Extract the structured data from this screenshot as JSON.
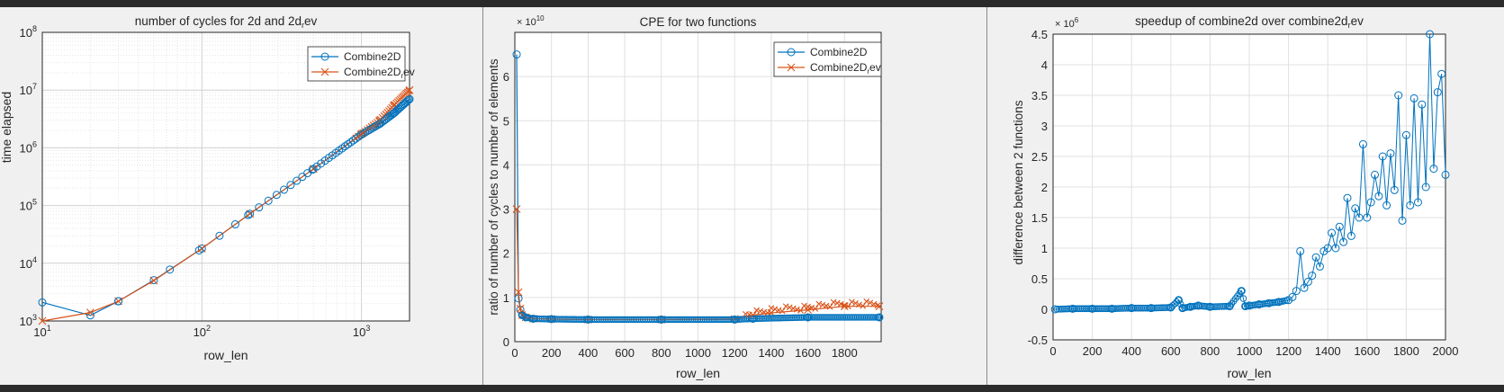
{
  "chart_data": [
    {
      "type": "line",
      "title": "number of cycles for 2d and 2d",
      "title_sub": "r",
      "title_tail": "ev",
      "xlabel": "row_len",
      "ylabel": "time elapsed",
      "xscale": "log",
      "yscale": "log",
      "xlim": [
        10,
        2000
      ],
      "ylim": [
        1000,
        100000000
      ],
      "grid": true,
      "legend_position": "top-right",
      "x_tick_labels": [
        {
          "base": "10",
          "exp": "1"
        },
        {
          "base": "10",
          "exp": "2"
        },
        {
          "base": "10",
          "exp": "3"
        }
      ],
      "y_tick_labels": [
        {
          "base": "10",
          "exp": "3"
        },
        {
          "base": "10",
          "exp": "4"
        },
        {
          "base": "10",
          "exp": "5"
        },
        {
          "base": "10",
          "exp": "6"
        },
        {
          "base": "10",
          "exp": "7"
        },
        {
          "base": "10",
          "exp": "8"
        }
      ],
      "series": [
        {
          "name": "Combine2D",
          "name_sub": "",
          "name_tail": "",
          "marker": "circle",
          "color": "#0072bd",
          "x": [
            10,
            20,
            30,
            50,
            100,
            200,
            500,
            1000,
            1300,
            1600,
            2000
          ],
          "y": [
            2100,
            1250,
            2200,
            5100,
            18000,
            72000,
            430000,
            1700000,
            2600000,
            4000000,
            7000000
          ]
        },
        {
          "name": "Combine2D",
          "name_sub": "r",
          "name_tail": "ev",
          "marker": "x",
          "color": "#d95319",
          "x": [
            10,
            20,
            30,
            50,
            100,
            200,
            500,
            1000,
            1300,
            1600,
            2000
          ],
          "y": [
            1000,
            1400,
            2200,
            5000,
            18000,
            72000,
            430000,
            1750000,
            3000000,
            5500000,
            10000000
          ]
        }
      ]
    },
    {
      "type": "line",
      "title": "CPE for two functions",
      "xlabel": "row_len",
      "ylabel": "ratio of number of cycles to number of elements",
      "xlim": [
        0,
        2000
      ],
      "ylim": [
        0,
        7
      ],
      "y_multiplier": "× 10",
      "y_multiplier_exp": "10",
      "grid": true,
      "legend_position": "top-right",
      "x_ticks": [
        0,
        200,
        400,
        600,
        800,
        1000,
        1200,
        1400,
        1600,
        1800
      ],
      "y_ticks": [
        0,
        1,
        2,
        3,
        4,
        5,
        6
      ],
      "series": [
        {
          "name": "Combine2D",
          "name_sub": "",
          "name_tail": "",
          "marker": "circle",
          "color": "#0072bd",
          "x": [
            10,
            20,
            30,
            40,
            60,
            100,
            200,
            400,
            800,
            1200,
            1300,
            1600,
            1990
          ],
          "y": [
            6.5,
            0.98,
            0.72,
            0.6,
            0.55,
            0.52,
            0.51,
            0.5,
            0.5,
            0.5,
            0.52,
            0.55,
            0.55
          ]
        },
        {
          "name": "Combine2D",
          "name_sub": "r",
          "name_tail": "ev",
          "marker": "x",
          "color": "#d95319",
          "x": [
            10,
            20,
            30,
            40,
            60,
            100,
            200,
            400,
            800,
            1200,
            1300,
            1400,
            1600,
            1800,
            1990
          ],
          "y": [
            3.0,
            1.12,
            0.75,
            0.6,
            0.55,
            0.52,
            0.51,
            0.5,
            0.5,
            0.51,
            0.6,
            0.65,
            0.72,
            0.8,
            0.8
          ]
        }
      ]
    },
    {
      "type": "line",
      "title": "speedup of combine2d over combine2d",
      "title_sub": "r",
      "title_tail": "ev",
      "xlabel": "row_len",
      "ylabel": "difference between 2 functions",
      "xlim": [
        0,
        2000
      ],
      "ylim": [
        -0.5,
        4.5
      ],
      "y_multiplier": "× 10",
      "y_multiplier_exp": "6",
      "grid": true,
      "x_ticks": [
        0,
        200,
        400,
        600,
        800,
        1000,
        1200,
        1400,
        1600,
        1800,
        2000
      ],
      "y_ticks": [
        -0.5,
        0,
        0.5,
        1,
        1.5,
        2,
        2.5,
        3,
        3.5,
        4,
        4.5
      ],
      "y_tick_labels": [
        "-0.5",
        "0",
        "0.5",
        "1",
        "1.5",
        "2",
        "2.5",
        "3",
        "3.5",
        "4",
        "4.5"
      ],
      "series": [
        {
          "name": "",
          "marker": "circle",
          "color": "#0072bd",
          "x": [
            10,
            100,
            200,
            300,
            400,
            500,
            600,
            640,
            660,
            700,
            740,
            800,
            900,
            960,
            980,
            1000,
            1050,
            1100,
            1150,
            1200,
            1220,
            1240,
            1260,
            1280,
            1300,
            1320,
            1340,
            1360,
            1380,
            1400,
            1420,
            1440,
            1460,
            1480,
            1500,
            1520,
            1540,
            1560,
            1580,
            1600,
            1620,
            1640,
            1660,
            1680,
            1700,
            1720,
            1740,
            1760,
            1780,
            1800,
            1820,
            1840,
            1860,
            1880,
            1900,
            1920,
            1940,
            1960,
            1980,
            2000
          ],
          "y": [
            0,
            0.01,
            0.01,
            0.01,
            0.02,
            0.02,
            0.03,
            0.15,
            0.02,
            0.04,
            0.06,
            0.04,
            0.05,
            0.3,
            0.05,
            0.06,
            0.08,
            0.1,
            0.12,
            0.15,
            0.2,
            0.3,
            0.95,
            0.35,
            0.45,
            0.55,
            0.85,
            0.7,
            0.95,
            1.0,
            1.25,
            1.0,
            1.35,
            1.1,
            1.82,
            1.2,
            1.65,
            1.5,
            2.7,
            1.5,
            1.75,
            2.2,
            1.85,
            2.5,
            1.7,
            2.55,
            1.95,
            3.5,
            1.45,
            2.85,
            1.7,
            3.45,
            1.75,
            3.35,
            2.0,
            4.5,
            2.3,
            3.55,
            3.85,
            2.2
          ]
        }
      ]
    }
  ]
}
